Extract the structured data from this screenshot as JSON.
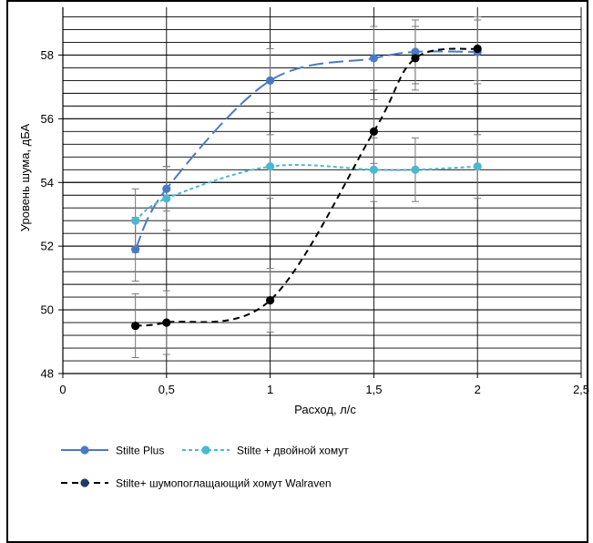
{
  "chart_data": {
    "type": "line",
    "title": "",
    "xlabel": "Расход, л/с",
    "ylabel": "Уровень шума, дБА",
    "xlim": [
      0,
      2.5
    ],
    "ylim": [
      48,
      59.5
    ],
    "x_ticks": [
      0,
      0.5,
      1,
      1.5,
      2,
      2.5
    ],
    "x_tick_labels": [
      "0",
      "0,5",
      "1",
      "1,5",
      "2",
      "2,5"
    ],
    "y_ticks": [
      48,
      50,
      52,
      54,
      56,
      58
    ],
    "y_tick_labels": [
      "48",
      "50",
      "52",
      "54",
      "56",
      "58"
    ],
    "minor_gridline_step": 0.4,
    "grid": "on",
    "legend_placement": "bottom",
    "series": [
      {
        "name": "Stilte Plus",
        "color": "#4a7ac5",
        "line_style": "long-dash",
        "x": [
          0.35,
          0.5,
          1.0,
          1.5,
          1.7,
          2.0
        ],
        "y": [
          51.9,
          53.8,
          57.2,
          57.9,
          58.1,
          58.1
        ],
        "error": [
          1.0,
          0.7,
          1.0,
          1.0,
          1.0,
          1.0
        ]
      },
      {
        "name": "Stilte + двойной хомут",
        "color": "#4cb8cf",
        "line_style": "short-dash",
        "x": [
          0.35,
          0.5,
          1.0,
          1.5,
          1.7,
          2.0
        ],
        "y": [
          52.8,
          53.5,
          54.5,
          54.4,
          54.4,
          54.5
        ],
        "error": [
          1.0,
          1.0,
          1.0,
          1.0,
          1.0,
          1.0
        ]
      },
      {
        "name": "Stilte+ шумопоглащающий хомут Walraven",
        "color": "#000000",
        "marker_color": "#000000",
        "line_style": "dash",
        "x": [
          0.35,
          0.5,
          1.0,
          1.5,
          1.7,
          2.0
        ],
        "y": [
          49.5,
          49.6,
          50.3,
          55.6,
          57.9,
          58.2
        ],
        "error": [
          1.0,
          1.0,
          1.0,
          1.0,
          1.0,
          1.0
        ]
      }
    ],
    "legend": [
      {
        "label": "Stilte Plus",
        "color": "#4a7ac5",
        "marker_color": "#4a7ac5",
        "line_style": "solid"
      },
      {
        "label": "Stilte + двойной хомут",
        "color": "#4cb8cf",
        "marker_color": "#4cb8cf",
        "line_style": "short-dash"
      },
      {
        "label": "Stilte+ шумопоглащающий хомут Walraven",
        "color": "#000000",
        "marker_color": "#1f3a68",
        "line_style": "dash"
      }
    ]
  }
}
